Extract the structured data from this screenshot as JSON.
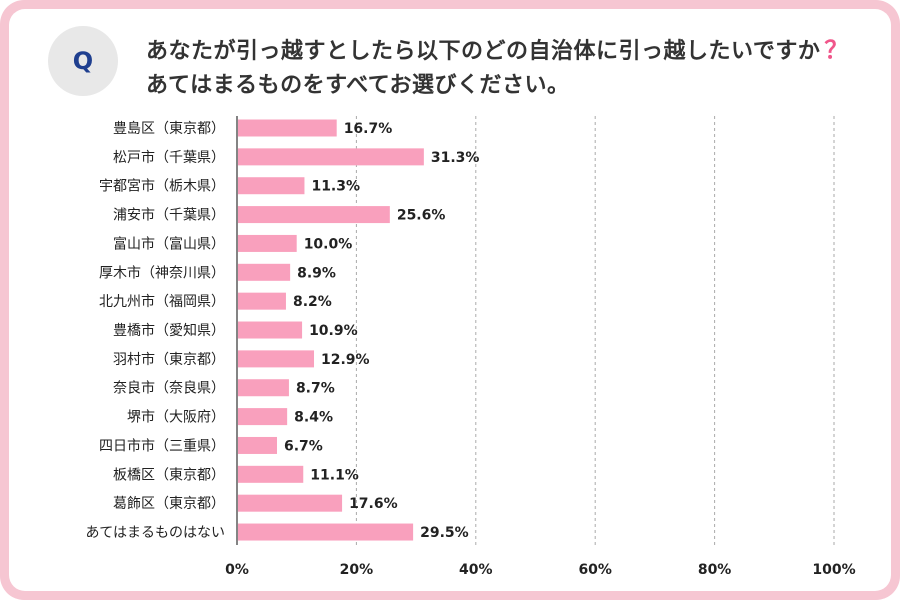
{
  "question": {
    "badge": "Q",
    "line1": "あなたが引っ越すとしたら以下のどの自治体に引っ越したいですか",
    "line1_mark": "？",
    "line2": "あてはまるものをすべてお選びください。"
  },
  "colors": {
    "bar": "#f9a0bd",
    "frame": "#f6c6d2",
    "badge_text": "#1f3f8f",
    "qmark": "#f0568a",
    "grid": "#aaaaaa"
  },
  "chart_data": {
    "type": "bar",
    "orientation": "horizontal",
    "title": "あなたが引っ越すとしたら以下のどの自治体に引っ越したいですか？あてはまるものをすべてお選びください。",
    "categories": [
      "豊島区（東京都）",
      "松戸市（千葉県）",
      "宇都宮市（栃木県）",
      "浦安市（千葉県）",
      "富山市（富山県）",
      "厚木市（神奈川県）",
      "北九州市（福岡県）",
      "豊橋市（愛知県）",
      "羽村市（東京都）",
      "奈良市（奈良県）",
      "堺市（大阪府）",
      "四日市市（三重県）",
      "板橋区（東京都）",
      "葛飾区（東京都）",
      "あてはまるものはない"
    ],
    "values": [
      16.7,
      31.3,
      11.3,
      25.6,
      10.0,
      8.9,
      8.2,
      10.9,
      12.9,
      8.7,
      8.4,
      6.7,
      11.1,
      17.6,
      29.5
    ],
    "value_labels": [
      "16.7%",
      "31.3%",
      "11.3%",
      "25.6%",
      "10.0%",
      "8.9%",
      "8.2%",
      "10.9%",
      "12.9%",
      "8.7%",
      "8.4%",
      "6.7%",
      "11.1%",
      "17.6%",
      "29.5%"
    ],
    "xlim": [
      0,
      100
    ],
    "xticks": [
      0,
      20,
      40,
      60,
      80,
      100
    ],
    "xtick_labels": [
      "0%",
      "20%",
      "40%",
      "60%",
      "80%",
      "100%"
    ],
    "grid": true,
    "legend": "none"
  }
}
